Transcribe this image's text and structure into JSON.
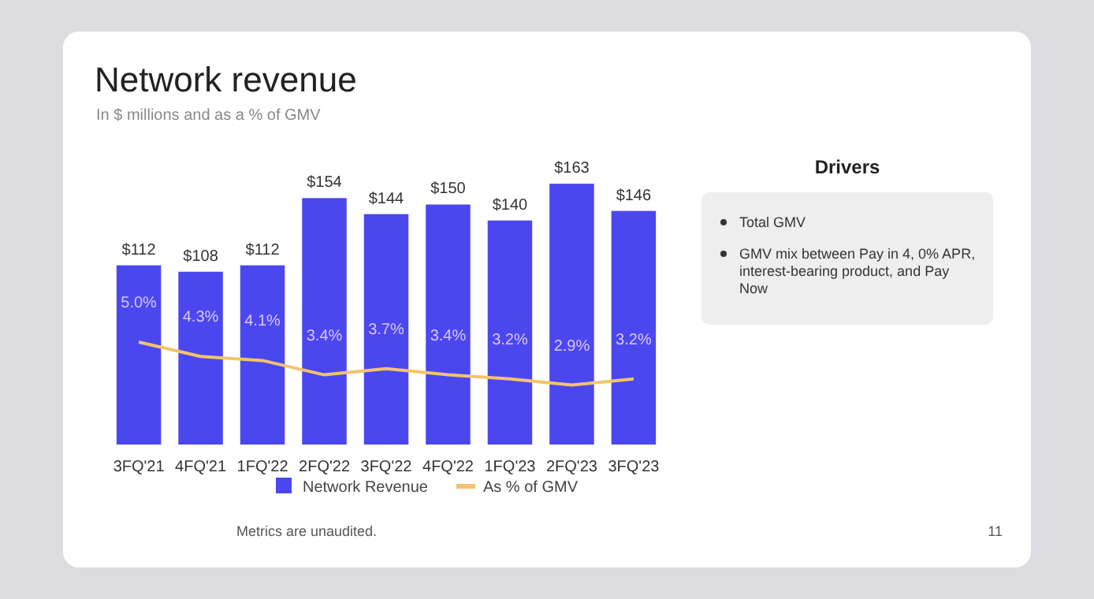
{
  "chart_data": [
    {
      "type": "bar",
      "title": "Network revenue",
      "subtitle": "In $ millions and as a % of GMV",
      "categories": [
        "3FQ'21",
        "4FQ'21",
        "1FQ'22",
        "2FQ'22",
        "3FQ'22",
        "4FQ'22",
        "1FQ'23",
        "2FQ'23",
        "3FQ'23"
      ],
      "series": [
        {
          "name": "Network Revenue",
          "type": "bar",
          "color": "#4b47ee",
          "values": [
            112,
            108,
            112,
            154,
            144,
            150,
            140,
            163,
            146
          ],
          "value_labels": [
            "$112",
            "$108",
            "$112",
            "$154",
            "$144",
            "$150",
            "$140",
            "$163",
            "$146"
          ]
        },
        {
          "name": "As % of GMV",
          "type": "line",
          "axis": "y2",
          "color": "#f2c46d",
          "values": [
            5.0,
            4.3,
            4.1,
            3.4,
            3.7,
            3.4,
            3.2,
            2.9,
            3.2
          ],
          "value_labels": [
            "5.0%",
            "4.3%",
            "4.1%",
            "3.4%",
            "3.7%",
            "3.4%",
            "3.2%",
            "2.9%",
            "3.2%"
          ]
        }
      ],
      "tick_labels": "x",
      "legend": "bottom",
      "marker": "none",
      "line_style": "solid",
      "annotations": [
        "Metrics are unaudited.",
        "11"
      ]
    },
    {
      "type": "other",
      "title": "Drivers",
      "annotations": [
        "Total GMV",
        "GMV mix between Pay in 4, 0% APR, interest-bearing product, and Pay Now"
      ]
    }
  ]
}
